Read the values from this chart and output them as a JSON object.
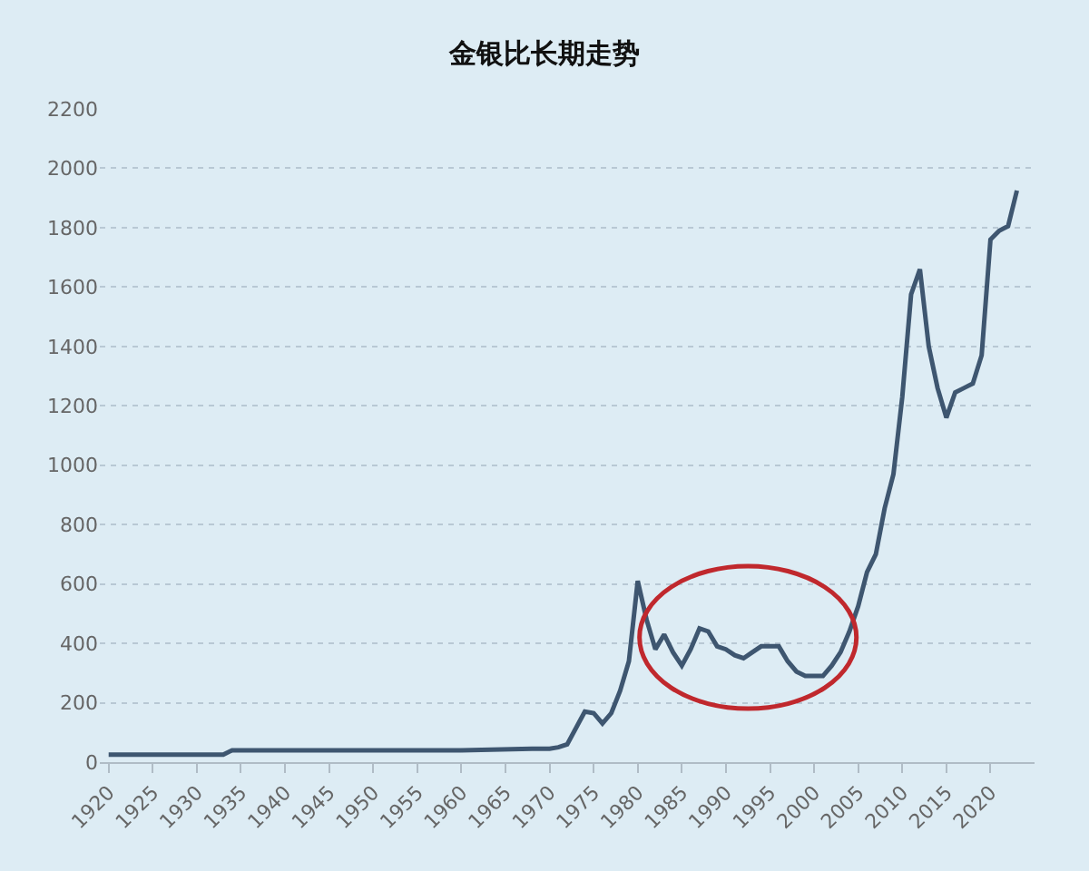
{
  "chart_data": {
    "type": "line",
    "title": "金银比长期走势",
    "x": [
      1920,
      1925,
      1930,
      1933,
      1934,
      1940,
      1950,
      1960,
      1968,
      1970,
      1971,
      1972,
      1974,
      1975,
      1976,
      1977,
      1978,
      1979,
      1980,
      1981,
      1982,
      1983,
      1984,
      1985,
      1986,
      1987,
      1988,
      1989,
      1990,
      1991,
      1992,
      1993,
      1994,
      1995,
      1996,
      1997,
      1998,
      1999,
      2000,
      2001,
      2002,
      2003,
      2004,
      2005,
      2006,
      2007,
      2008,
      2009,
      2010,
      2011,
      2012,
      2013,
      2014,
      2015,
      2016,
      2017,
      2018,
      2019,
      2020,
      2021,
      2022,
      2023
    ],
    "series": [
      {
        "color": "#3e5670",
        "values": [
          25,
          25,
          25,
          25,
          40,
          40,
          40,
          40,
          45,
          45,
          50,
          60,
          170,
          165,
          130,
          165,
          240,
          340,
          610,
          480,
          380,
          430,
          370,
          325,
          380,
          450,
          440,
          390,
          380,
          360,
          350,
          370,
          390,
          390,
          390,
          340,
          305,
          290,
          290,
          290,
          325,
          370,
          440,
          525,
          640,
          700,
          855,
          970,
          1230,
          1575,
          1660,
          1400,
          1260,
          1160,
          1245,
          1260,
          1275,
          1370,
          1760,
          1790,
          1805,
          1925
        ]
      }
    ],
    "xlim": [
      1919,
      2025
    ],
    "xticks": [
      1920,
      1925,
      1930,
      1935,
      1940,
      1945,
      1950,
      1955,
      1960,
      1965,
      1970,
      1975,
      1980,
      1985,
      1990,
      1995,
      2000,
      2005,
      2010,
      2015,
      2020
    ],
    "ylim": [
      0,
      2200
    ],
    "yticks": [
      0,
      200,
      400,
      600,
      800,
      1000,
      1200,
      1400,
      1600,
      1800,
      2000,
      2200
    ],
    "grid": "y",
    "legend": false,
    "marker": "none",
    "line_style": "solid"
  }
}
